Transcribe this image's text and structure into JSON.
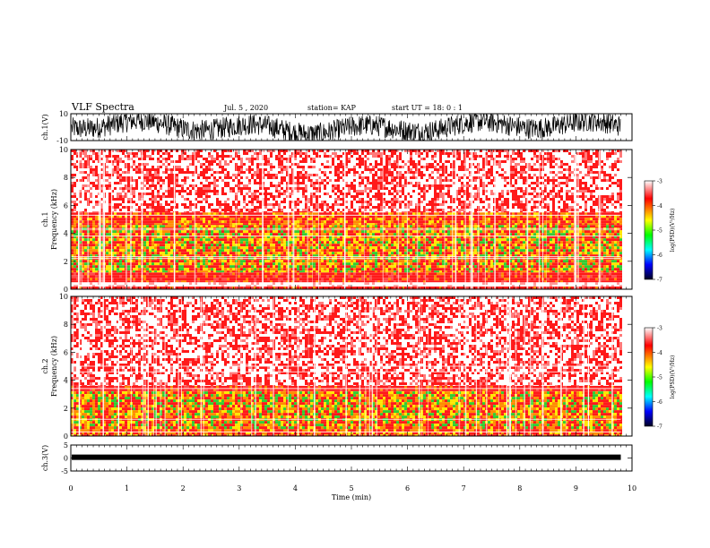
{
  "header": {
    "title": "VLF Spectra",
    "date": "Jul. 5 , 2020",
    "station": "station= KAP",
    "start": "start UT = 18: 0 : 1"
  },
  "chart_data": [
    {
      "type": "line",
      "id": "ch1-waveform",
      "ylabel": "ch.1(V)",
      "ylim": [
        -10,
        10
      ],
      "yticks": [
        "10",
        "-10"
      ],
      "xlim": [
        0,
        10
      ],
      "data_end_min": 9.8,
      "description_level": "dense noisy waveform filling approx -10 to 10 V"
    },
    {
      "type": "heatmap",
      "id": "ch1-spectrogram",
      "ylabel": "ch.1\nFrequency (kHz)",
      "ylabel_lines": [
        "ch.1",
        "Frequency (kHz)"
      ],
      "ylim": [
        0,
        10
      ],
      "yticks": [
        "0",
        "2",
        "4",
        "6",
        "8",
        "10"
      ],
      "xlim": [
        0,
        10
      ],
      "data_end_min": 9.8,
      "bands_khz": [
        {
          "from": 0.0,
          "to": 0.2,
          "level": "red"
        },
        {
          "from": 0.2,
          "to": 0.5,
          "level": "white"
        },
        {
          "from": 0.5,
          "to": 1.2,
          "level": "red"
        },
        {
          "from": 1.2,
          "to": 4.6,
          "level": "yellow-green"
        },
        {
          "from": 4.6,
          "to": 5.5,
          "level": "red-orange"
        },
        {
          "from": 5.5,
          "to": 10.0,
          "level": "red-white"
        }
      ],
      "colorbar": {
        "label": "log(PSD)(V²/Hz)",
        "ticks": [
          "-3",
          "-4",
          "-5",
          "-6",
          "-7"
        ],
        "range": [
          -7,
          -3
        ]
      }
    },
    {
      "type": "heatmap",
      "id": "ch2-spectrogram",
      "ylabel": "ch.2\nFrequency (kHz)",
      "ylabel_lines": [
        "ch.2",
        "Frequency (kHz)"
      ],
      "ylim": [
        0,
        10
      ],
      "yticks": [
        "0",
        "2",
        "4",
        "6",
        "8",
        "10"
      ],
      "xlim": [
        0,
        10
      ],
      "data_end_min": 9.8,
      "bands_khz": [
        {
          "from": 0.0,
          "to": 0.5,
          "level": "red-orange"
        },
        {
          "from": 0.5,
          "to": 3.2,
          "level": "yellow-green"
        },
        {
          "from": 3.2,
          "to": 3.6,
          "level": "red"
        },
        {
          "from": 3.6,
          "to": 10.0,
          "level": "red-white"
        }
      ],
      "colorbar": {
        "label": "log(PSD)(V²/Hz)",
        "ticks": [
          "-3",
          "-4",
          "-5",
          "-6",
          "-7"
        ],
        "range": [
          -7,
          -3
        ]
      }
    },
    {
      "type": "line",
      "id": "ch3-waveform",
      "ylabel": "ch.3(V)",
      "ylim": [
        -5,
        5
      ],
      "yticks": [
        "5",
        "0",
        "-5"
      ],
      "xlim": [
        0,
        10
      ],
      "data_end_min": 9.8,
      "level_v": 0.3,
      "xlabel": "Time (min)",
      "xticks": [
        "0",
        "1",
        "2",
        "3",
        "4",
        "5",
        "6",
        "7",
        "8",
        "9",
        "10"
      ]
    }
  ],
  "colors": {
    "red": "#ff1a1a",
    "orange": "#ff8c00",
    "yellow": "#ffe600",
    "green": "#33cc33",
    "white": "#ffffff",
    "colorbar_stops": [
      "#ffffff",
      "#ff0000",
      "#ffff00",
      "#00ff00",
      "#00ffff",
      "#0000ff",
      "#000033"
    ]
  }
}
